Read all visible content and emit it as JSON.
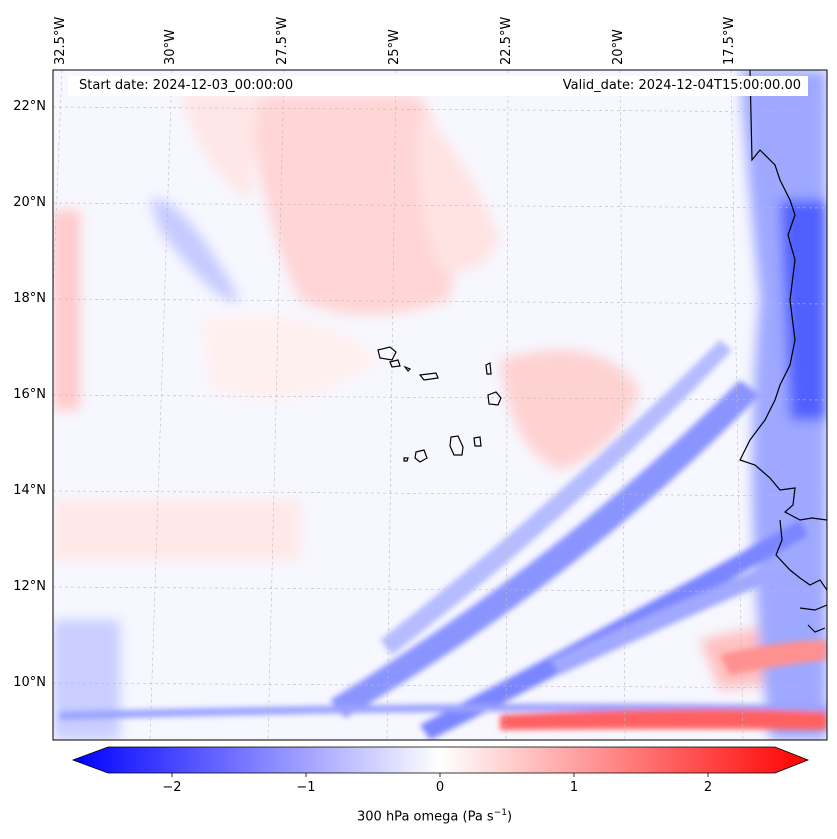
{
  "header": {
    "start_date": "Start date: 2024-12-03_00:00:00",
    "valid_date": "Valid_date: 2024-12-04T15:00:00.00"
  },
  "lon_ticks": [
    "32.5°W",
    "30°W",
    "27.5°W",
    "25°W",
    "22.5°W",
    "20°W",
    "17.5°W"
  ],
  "lat_ticks": [
    "22°N",
    "20°N",
    "18°N",
    "16°N",
    "14°N",
    "12°N",
    "10°N"
  ],
  "colorbar": {
    "ticks": [
      "−2",
      "−1",
      "0",
      "1",
      "2"
    ],
    "label_main": "300 hPa omega (Pa s",
    "label_exp": "−1",
    "label_end": ")",
    "vmin": -2.5,
    "vmax": 2.5,
    "colormap": "bwr",
    "low_color": "#0000ff",
    "mid_color": "#ffffff",
    "high_color": "#ff0000"
  },
  "map": {
    "extent_lon": [
      -33.0,
      -15.0
    ],
    "extent_lat": [
      9.0,
      22.8
    ],
    "gridlines": true,
    "coastline_color": "#000000"
  }
}
